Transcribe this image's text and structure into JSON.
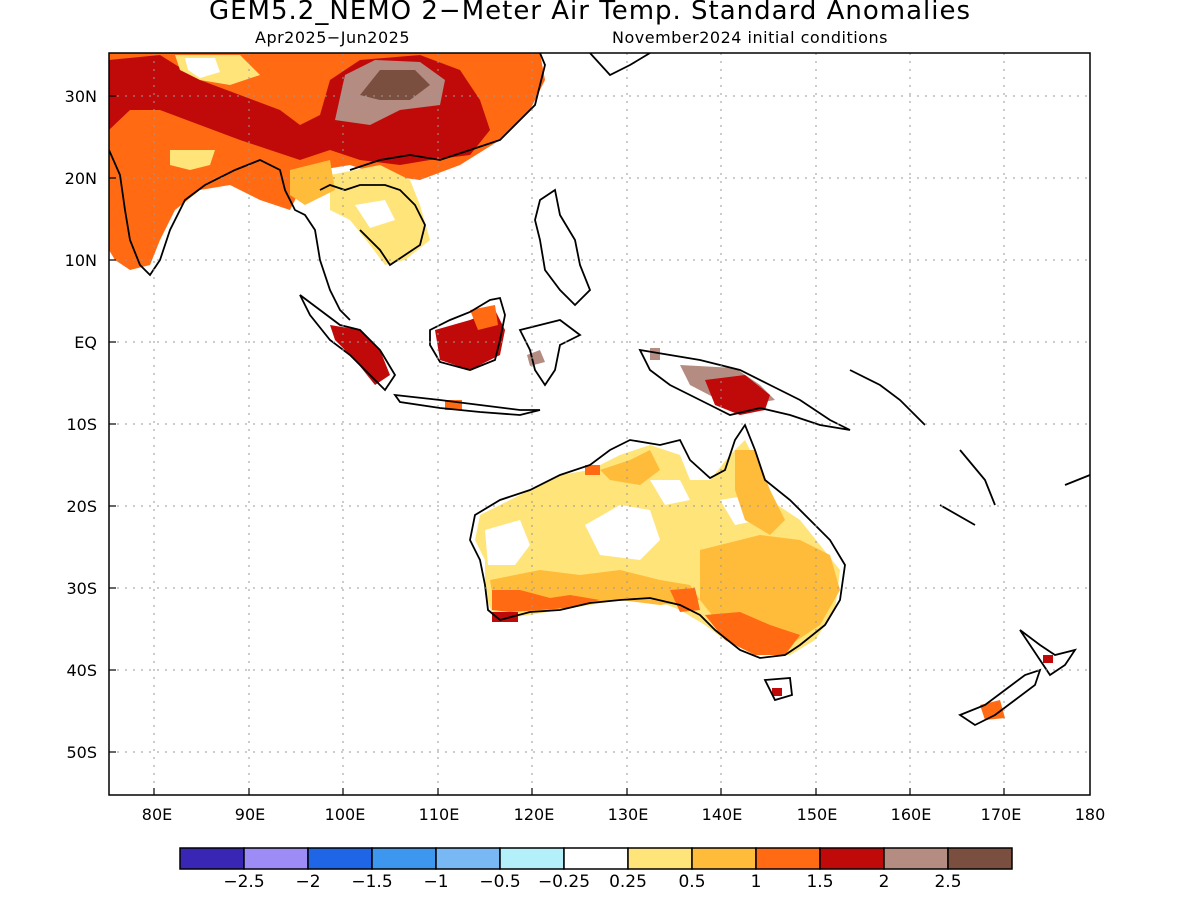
{
  "title": "GEM5.2_NEMO 2−Meter Air Temp. Standard Anomalies",
  "period": "Apr2025−Jun2025",
  "init": "November2024 initial conditions",
  "lat_labels": [
    "30N",
    "20N",
    "10N",
    "EQ",
    "10S",
    "20S",
    "30S",
    "40S",
    "50S"
  ],
  "lon_labels": [
    "80E",
    "90E",
    "100E",
    "110E",
    "120E",
    "130E",
    "140E",
    "150E",
    "160E",
    "170E",
    "180"
  ],
  "colorbar": {
    "colors": [
      "#3a26b4",
      "#9d8cf5",
      "#1f66e6",
      "#3d97ee",
      "#78b9f5",
      "#b4f0fa",
      "#ffffff",
      "#ffe47a",
      "#ffbb3a",
      "#ff6a12",
      "#c00a0a",
      "#b48c82",
      "#7a4f40"
    ],
    "labels": [
      "−2.5",
      "−2",
      "−1.5",
      "−1",
      "−0.5",
      "−0.25",
      "0.25",
      "0.5",
      "1",
      "1.5",
      "2",
      "2.5"
    ]
  }
}
